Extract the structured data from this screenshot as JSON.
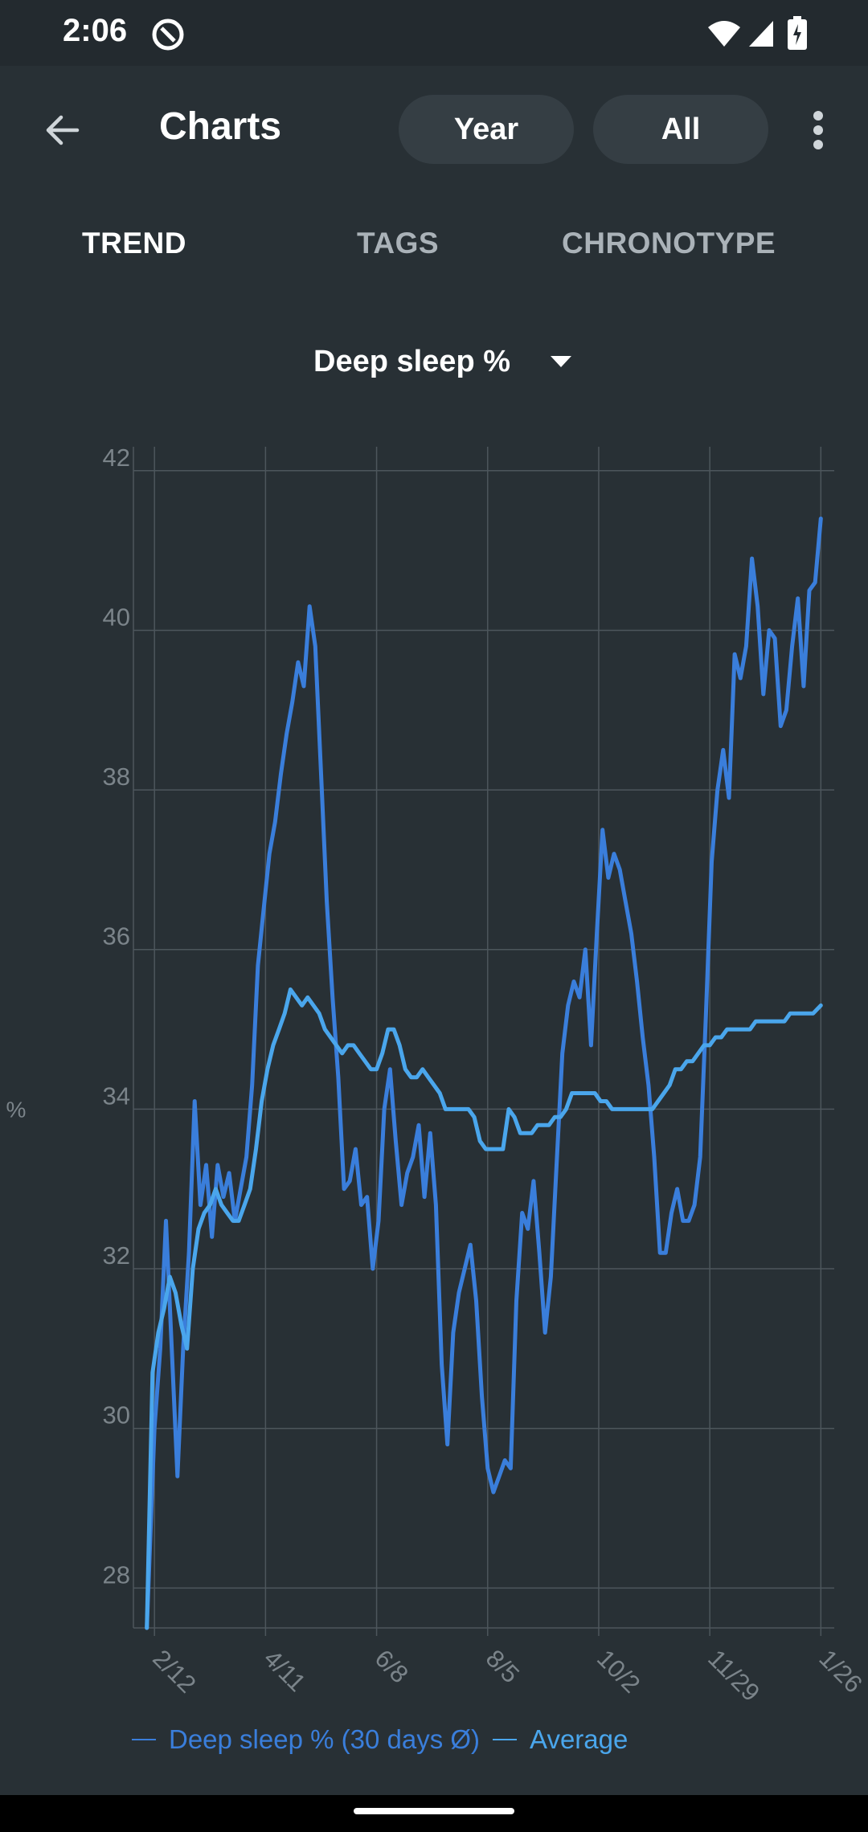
{
  "status_bar": {
    "time": "2:06",
    "icons": [
      "do-not-disturb-icon",
      "wifi-icon",
      "signal-icon",
      "battery-charging-icon"
    ]
  },
  "app_bar": {
    "title": "Charts",
    "back_icon": "arrow-left-icon",
    "period_buttons": [
      "Year",
      "All"
    ],
    "overflow_icon": "more-vert-icon"
  },
  "tabs": [
    {
      "label": "TREND",
      "selected": true
    },
    {
      "label": "TAGS",
      "selected": false
    },
    {
      "label": "CHRONOTYPE",
      "selected": false
    }
  ],
  "metric_selector": {
    "label": "Deep sleep %",
    "icon": "dropdown-arrow-icon"
  },
  "colors": {
    "background": "#283035",
    "status_bar": "#232a2f",
    "pill": "#353e44",
    "series_30day": "#3a7edb",
    "series_average": "#4aa6ec",
    "grid": "#4d565c",
    "tick_label": "#7b848a"
  },
  "chart_data": {
    "type": "line",
    "ylabel": "%",
    "xlabel": "",
    "ylim": [
      27.5,
      42.3
    ],
    "xlim": [
      "2021-02-01",
      "2022-02-02"
    ],
    "yticks": [
      28,
      30,
      32,
      34,
      36,
      38,
      40,
      42
    ],
    "xticks": [
      {
        "date": "2021-02-12",
        "label": "2/12"
      },
      {
        "date": "2021-04-11",
        "label": "4/11"
      },
      {
        "date": "2021-06-08",
        "label": "6/8"
      },
      {
        "date": "2021-08-05",
        "label": "8/5"
      },
      {
        "date": "2021-10-02",
        "label": "10/2"
      },
      {
        "date": "2021-11-29",
        "label": "11/29"
      },
      {
        "date": "2022-01-26",
        "label": "1/26"
      }
    ],
    "grid": true,
    "legend_position": "bottom",
    "series": [
      {
        "name": "Deep sleep % (30 days Ø)",
        "color": "#3a7edb",
        "points": [
          [
            "2021-02-08",
            27.5
          ],
          [
            "2021-02-12",
            30.0
          ],
          [
            "2021-02-15",
            31.0
          ],
          [
            "2021-02-18",
            32.6
          ],
          [
            "2021-02-21",
            31.0
          ],
          [
            "2021-02-24",
            29.4
          ],
          [
            "2021-02-27",
            31.0
          ],
          [
            "2021-03-02",
            32.2
          ],
          [
            "2021-03-05",
            34.1
          ],
          [
            "2021-03-08",
            32.8
          ],
          [
            "2021-03-11",
            33.3
          ],
          [
            "2021-03-14",
            32.4
          ],
          [
            "2021-03-17",
            33.3
          ],
          [
            "2021-03-20",
            32.9
          ],
          [
            "2021-03-23",
            33.2
          ],
          [
            "2021-03-26",
            32.6
          ],
          [
            "2021-03-29",
            33.0
          ],
          [
            "2021-04-01",
            33.4
          ],
          [
            "2021-04-04",
            34.3
          ],
          [
            "2021-04-07",
            35.8
          ],
          [
            "2021-04-10",
            36.5
          ],
          [
            "2021-04-13",
            37.2
          ],
          [
            "2021-04-16",
            37.6
          ],
          [
            "2021-04-19",
            38.2
          ],
          [
            "2021-04-22",
            38.7
          ],
          [
            "2021-04-25",
            39.1
          ],
          [
            "2021-04-28",
            39.6
          ],
          [
            "2021-05-01",
            39.3
          ],
          [
            "2021-05-04",
            40.3
          ],
          [
            "2021-05-07",
            39.8
          ],
          [
            "2021-05-10",
            38.2
          ],
          [
            "2021-05-13",
            36.6
          ],
          [
            "2021-05-16",
            35.4
          ],
          [
            "2021-05-19",
            34.4
          ],
          [
            "2021-05-22",
            33.0
          ],
          [
            "2021-05-25",
            33.1
          ],
          [
            "2021-05-28",
            33.5
          ],
          [
            "2021-05-31",
            32.8
          ],
          [
            "2021-06-03",
            32.9
          ],
          [
            "2021-06-06",
            32.0
          ],
          [
            "2021-06-09",
            32.6
          ],
          [
            "2021-06-12",
            34.0
          ],
          [
            "2021-06-15",
            34.5
          ],
          [
            "2021-06-18",
            33.6
          ],
          [
            "2021-06-21",
            32.8
          ],
          [
            "2021-06-24",
            33.2
          ],
          [
            "2021-06-27",
            33.4
          ],
          [
            "2021-06-30",
            33.8
          ],
          [
            "2021-07-03",
            32.9
          ],
          [
            "2021-07-06",
            33.7
          ],
          [
            "2021-07-09",
            32.8
          ],
          [
            "2021-07-12",
            30.8
          ],
          [
            "2021-07-15",
            29.8
          ],
          [
            "2021-07-18",
            31.2
          ],
          [
            "2021-07-21",
            31.7
          ],
          [
            "2021-07-24",
            32.0
          ],
          [
            "2021-07-27",
            32.3
          ],
          [
            "2021-07-30",
            31.6
          ],
          [
            "2021-08-02",
            30.4
          ],
          [
            "2021-08-05",
            29.5
          ],
          [
            "2021-08-08",
            29.2
          ],
          [
            "2021-08-11",
            29.4
          ],
          [
            "2021-08-14",
            29.6
          ],
          [
            "2021-08-17",
            29.5
          ],
          [
            "2021-08-20",
            31.6
          ],
          [
            "2021-08-23",
            32.7
          ],
          [
            "2021-08-26",
            32.5
          ],
          [
            "2021-08-29",
            33.1
          ],
          [
            "2021-09-01",
            32.2
          ],
          [
            "2021-09-04",
            31.2
          ],
          [
            "2021-09-07",
            31.9
          ],
          [
            "2021-09-10",
            33.3
          ],
          [
            "2021-09-13",
            34.7
          ],
          [
            "2021-09-16",
            35.3
          ],
          [
            "2021-09-19",
            35.6
          ],
          [
            "2021-09-22",
            35.4
          ],
          [
            "2021-09-25",
            36.0
          ],
          [
            "2021-09-28",
            34.8
          ],
          [
            "2021-10-01",
            36.2
          ],
          [
            "2021-10-04",
            37.5
          ],
          [
            "2021-10-07",
            36.9
          ],
          [
            "2021-10-10",
            37.2
          ],
          [
            "2021-10-13",
            37.0
          ],
          [
            "2021-10-16",
            36.6
          ],
          [
            "2021-10-19",
            36.2
          ],
          [
            "2021-10-22",
            35.6
          ],
          [
            "2021-10-25",
            34.9
          ],
          [
            "2021-10-28",
            34.3
          ],
          [
            "2021-10-31",
            33.4
          ],
          [
            "2021-11-03",
            32.2
          ],
          [
            "2021-11-06",
            32.2
          ],
          [
            "2021-11-09",
            32.7
          ],
          [
            "2021-11-12",
            33.0
          ],
          [
            "2021-11-15",
            32.6
          ],
          [
            "2021-11-18",
            32.6
          ],
          [
            "2021-11-21",
            32.8
          ],
          [
            "2021-11-24",
            33.4
          ],
          [
            "2021-11-27",
            35.2
          ],
          [
            "2021-11-30",
            37.1
          ],
          [
            "2021-12-03",
            38.0
          ],
          [
            "2021-12-06",
            38.5
          ],
          [
            "2021-12-09",
            37.9
          ],
          [
            "2021-12-12",
            39.7
          ],
          [
            "2021-12-15",
            39.4
          ],
          [
            "2021-12-18",
            39.8
          ],
          [
            "2021-12-21",
            40.9
          ],
          [
            "2021-12-24",
            40.3
          ],
          [
            "2021-12-27",
            39.2
          ],
          [
            "2021-12-30",
            40.0
          ],
          [
            "2022-01-02",
            39.9
          ],
          [
            "2022-01-05",
            38.8
          ],
          [
            "2022-01-08",
            39.0
          ],
          [
            "2022-01-11",
            39.8
          ],
          [
            "2022-01-14",
            40.4
          ],
          [
            "2022-01-17",
            39.3
          ],
          [
            "2022-01-20",
            40.5
          ],
          [
            "2022-01-23",
            40.6
          ],
          [
            "2022-01-26",
            41.4
          ]
        ]
      },
      {
        "name": "Average",
        "color": "#4aa6ec",
        "points": [
          [
            "2021-02-08",
            27.5
          ],
          [
            "2021-02-11",
            30.7
          ],
          [
            "2021-02-14",
            31.2
          ],
          [
            "2021-02-17",
            31.5
          ],
          [
            "2021-02-20",
            31.9
          ],
          [
            "2021-02-23",
            31.7
          ],
          [
            "2021-02-26",
            31.3
          ],
          [
            "2021-03-01",
            31.0
          ],
          [
            "2021-03-04",
            32.0
          ],
          [
            "2021-03-07",
            32.5
          ],
          [
            "2021-03-10",
            32.7
          ],
          [
            "2021-03-13",
            32.8
          ],
          [
            "2021-03-16",
            33.0
          ],
          [
            "2021-03-19",
            32.8
          ],
          [
            "2021-03-22",
            32.7
          ],
          [
            "2021-03-25",
            32.6
          ],
          [
            "2021-03-28",
            32.6
          ],
          [
            "2021-03-31",
            32.8
          ],
          [
            "2021-04-03",
            33.0
          ],
          [
            "2021-04-06",
            33.5
          ],
          [
            "2021-04-09",
            34.1
          ],
          [
            "2021-04-12",
            34.5
          ],
          [
            "2021-04-15",
            34.8
          ],
          [
            "2021-04-18",
            35.0
          ],
          [
            "2021-04-21",
            35.2
          ],
          [
            "2021-04-24",
            35.5
          ],
          [
            "2021-04-27",
            35.4
          ],
          [
            "2021-04-30",
            35.3
          ],
          [
            "2021-05-03",
            35.4
          ],
          [
            "2021-05-06",
            35.3
          ],
          [
            "2021-05-09",
            35.2
          ],
          [
            "2021-05-12",
            35.0
          ],
          [
            "2021-05-15",
            34.9
          ],
          [
            "2021-05-18",
            34.8
          ],
          [
            "2021-05-21",
            34.7
          ],
          [
            "2021-05-24",
            34.8
          ],
          [
            "2021-05-27",
            34.8
          ],
          [
            "2021-05-30",
            34.7
          ],
          [
            "2021-06-02",
            34.6
          ],
          [
            "2021-06-05",
            34.5
          ],
          [
            "2021-06-08",
            34.5
          ],
          [
            "2021-06-11",
            34.7
          ],
          [
            "2021-06-14",
            35.0
          ],
          [
            "2021-06-17",
            35.0
          ],
          [
            "2021-06-20",
            34.8
          ],
          [
            "2021-06-23",
            34.5
          ],
          [
            "2021-06-26",
            34.4
          ],
          [
            "2021-06-29",
            34.4
          ],
          [
            "2021-07-02",
            34.5
          ],
          [
            "2021-07-05",
            34.4
          ],
          [
            "2021-07-08",
            34.3
          ],
          [
            "2021-07-11",
            34.2
          ],
          [
            "2021-07-14",
            34.0
          ],
          [
            "2021-07-17",
            34.0
          ],
          [
            "2021-07-20",
            34.0
          ],
          [
            "2021-07-23",
            34.0
          ],
          [
            "2021-07-26",
            34.0
          ],
          [
            "2021-07-29",
            33.9
          ],
          [
            "2021-08-01",
            33.6
          ],
          [
            "2021-08-04",
            33.5
          ],
          [
            "2021-08-07",
            33.5
          ],
          [
            "2021-08-10",
            33.5
          ],
          [
            "2021-08-13",
            33.5
          ],
          [
            "2021-08-16",
            34.0
          ],
          [
            "2021-08-19",
            33.9
          ],
          [
            "2021-08-22",
            33.7
          ],
          [
            "2021-08-25",
            33.7
          ],
          [
            "2021-08-28",
            33.7
          ],
          [
            "2021-08-31",
            33.8
          ],
          [
            "2021-09-03",
            33.8
          ],
          [
            "2021-09-06",
            33.8
          ],
          [
            "2021-09-09",
            33.9
          ],
          [
            "2021-09-12",
            33.9
          ],
          [
            "2021-09-15",
            34.0
          ],
          [
            "2021-09-18",
            34.2
          ],
          [
            "2021-09-21",
            34.2
          ],
          [
            "2021-09-24",
            34.2
          ],
          [
            "2021-09-27",
            34.2
          ],
          [
            "2021-09-30",
            34.2
          ],
          [
            "2021-10-03",
            34.1
          ],
          [
            "2021-10-06",
            34.1
          ],
          [
            "2021-10-09",
            34.0
          ],
          [
            "2021-10-12",
            34.0
          ],
          [
            "2021-10-15",
            34.0
          ],
          [
            "2021-10-18",
            34.0
          ],
          [
            "2021-10-21",
            34.0
          ],
          [
            "2021-10-24",
            34.0
          ],
          [
            "2021-10-27",
            34.0
          ],
          [
            "2021-10-30",
            34.0
          ],
          [
            "2021-11-02",
            34.1
          ],
          [
            "2021-11-05",
            34.2
          ],
          [
            "2021-11-08",
            34.3
          ],
          [
            "2021-11-11",
            34.5
          ],
          [
            "2021-11-14",
            34.5
          ],
          [
            "2021-11-17",
            34.6
          ],
          [
            "2021-11-20",
            34.6
          ],
          [
            "2021-11-23",
            34.7
          ],
          [
            "2021-11-26",
            34.8
          ],
          [
            "2021-11-29",
            34.8
          ],
          [
            "2021-12-02",
            34.9
          ],
          [
            "2021-12-05",
            34.9
          ],
          [
            "2021-12-08",
            35.0
          ],
          [
            "2021-12-11",
            35.0
          ],
          [
            "2021-12-14",
            35.0
          ],
          [
            "2021-12-17",
            35.0
          ],
          [
            "2021-12-20",
            35.0
          ],
          [
            "2021-12-23",
            35.1
          ],
          [
            "2021-12-26",
            35.1
          ],
          [
            "2021-12-29",
            35.1
          ],
          [
            "2022-01-01",
            35.1
          ],
          [
            "2022-01-04",
            35.1
          ],
          [
            "2022-01-07",
            35.1
          ],
          [
            "2022-01-10",
            35.2
          ],
          [
            "2022-01-13",
            35.2
          ],
          [
            "2022-01-16",
            35.2
          ],
          [
            "2022-01-19",
            35.2
          ],
          [
            "2022-01-22",
            35.2
          ],
          [
            "2022-01-26",
            35.3
          ]
        ]
      }
    ]
  }
}
